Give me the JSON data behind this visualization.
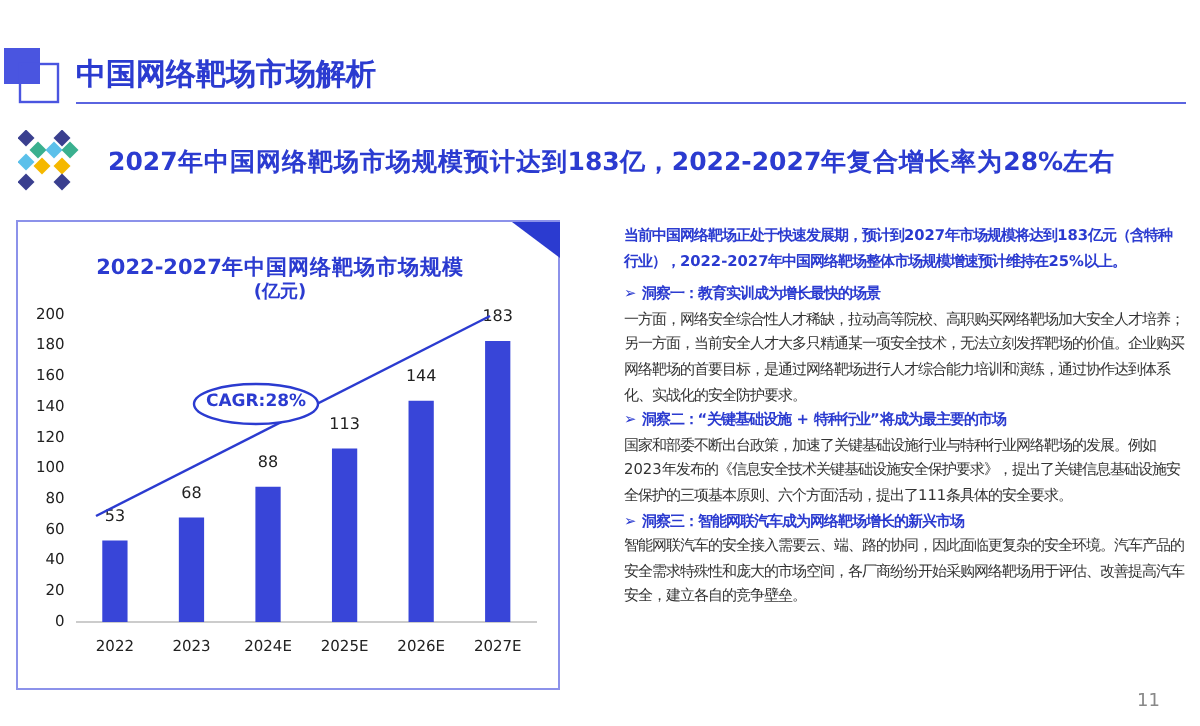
{
  "chart_data": {
    "type": "bar",
    "title": "2022-2027年中国网络靶场市场规模",
    "ylabel": "(亿元)",
    "categories": [
      "2022",
      "2023",
      "2024E",
      "2025E",
      "2026E",
      "2027E"
    ],
    "values": [
      53,
      68,
      88,
      113,
      144,
      183
    ],
    "color": "#3845d8",
    "ylim": [
      0,
      200
    ],
    "yticks": [
      0,
      20,
      40,
      60,
      80,
      100,
      120,
      140,
      160,
      180,
      200
    ],
    "grid": false,
    "legend": false,
    "data_labels": true,
    "annotations": [
      "中国网络靶场市场解析",
      "2027年中国网络靶场市场规模预计达到183亿，2022-2027年复合增长率为28%左右",
      "CAGR:28%",
      "当前中国网络靶场正处于快速发展期，预计到2027年市场规模将达到183亿元（含特种行业），2022-2027年中国网络靶场整体市场规模增速预计维持在25%以上。",
      "➢ 洞察一：教育实训成为增长最快的场景",
      "一方面，网络安全综合性人才稀缺，拉动高等院校、高职购买网络靶场加大安全人才培养；另一方面，当前安全人才大多只精通某一项安全技术，无法立刻发挥靶场的价值。企业购买网络靶场的首要目标，是通过网络靶场进行人才综合能力培训和演练，通过协作达到体系化、实战化的安全防护要求。",
      "➢ 洞察二：“关键基础设施 + 特种行业”将成为最主要的市场",
      "国家和部委不断出台政策，加速了关键基础设施行业与特种行业网络靶场的发展。例如2023年发布的《信息安全技术关键基础设施安全保护要求》，提出了关键信息基础设施安全保护的三项基本原则、六个方面活动，提出了111条具体的安全要求。",
      "➢ 洞察三：智能网联汽车成为网络靶场增长的新兴市场",
      "智能网联汽车的安全接入需要云、端、路的协同，因此面临更复杂的安全环境。汽车产品的安全需求特殊性和庞大的市场空间，各厂商纷纷开始采购网络靶场用于评估、改善提高汽车安全，建立各自的竞争壁垒。",
      "11"
    ]
  }
}
